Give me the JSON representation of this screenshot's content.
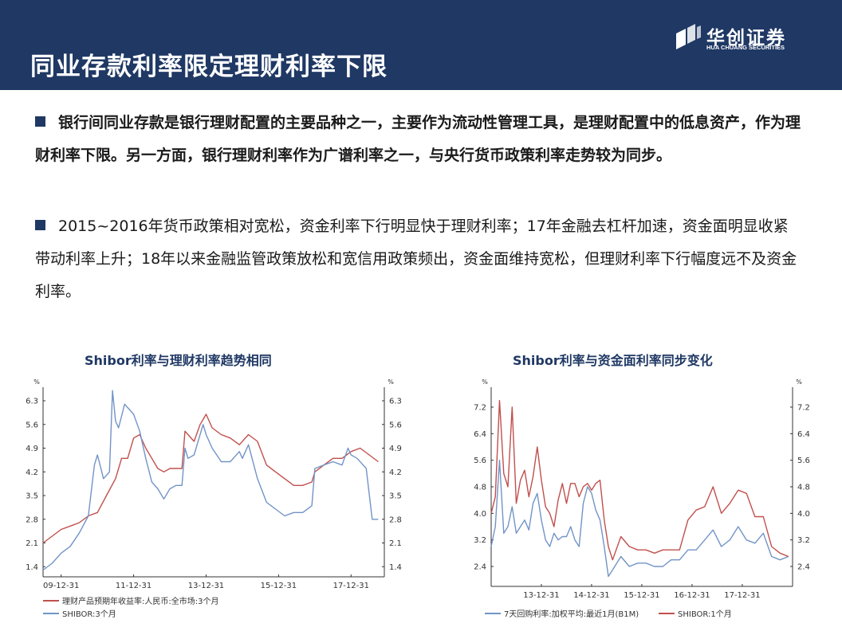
{
  "slide": {
    "title": "同业存款利率限定理财利率下限",
    "logo_cn": "华创证券",
    "logo_en": "HUA CHUANG SECURITIES",
    "paragraph1": "银行间同业存款是银行理财配置的主要品种之一，主要作为流动性管理工具，是理财配置中的低息资产，作为理财利率下限。另一方面，银行理财利率作为广谱利率之一，与央行货币政策利率走势较为同步。",
    "paragraph2": "2015~2016年货币政策相对宽松，资金利率下行明显快于理财利率；17年金融去杠杆加速，资金面明显收紧带动利率上升；18年以来金融监管政策放松和宽信用政策频出，资金面维持宽松，但理财利率下行幅度远不及资金利率。"
  },
  "colors": {
    "header": "#1f3864",
    "red": "#c0504d",
    "blue": "#7294c7"
  },
  "chart_data": [
    {
      "type": "line",
      "title": "Shibor利率与理财利率趋势相同",
      "unit": "%",
      "x_ticks": [
        "09-12-31",
        "11-12-31",
        "13-12-31",
        "15-12-31",
        "17-12-31"
      ],
      "x_range": [
        "2009-07",
        "2018-12"
      ],
      "y_ticks": [
        "1.4",
        "2.1",
        "2.8",
        "3.5",
        "4.2",
        "4.9",
        "5.6",
        "6.3"
      ],
      "ylim": [
        1.1,
        6.7
      ],
      "legend_position": "bottom",
      "series": [
        {
          "name": "理财产品预期年收益率:人民币:全市场:3个月",
          "color": "#c0504d",
          "x": [
            "2009-07",
            "2009-10",
            "2010-01",
            "2010-04",
            "2010-07",
            "2010-10",
            "2011-01",
            "2011-04",
            "2011-07",
            "2011-09",
            "2011-11",
            "2012-01",
            "2012-03",
            "2012-05",
            "2012-07",
            "2012-09",
            "2012-11",
            "2013-01",
            "2013-03",
            "2013-05",
            "2013-06",
            "2013-07",
            "2013-09",
            "2013-11",
            "2014-01",
            "2014-03",
            "2014-06",
            "2014-09",
            "2014-12",
            "2015-03",
            "2015-06",
            "2015-09",
            "2015-12",
            "2016-03",
            "2016-06",
            "2016-09",
            "2016-12",
            "2017-01",
            "2017-04",
            "2017-07",
            "2017-10",
            "2018-01",
            "2018-04",
            "2018-07",
            "2018-10"
          ],
          "y": [
            2.1,
            2.3,
            2.5,
            2.6,
            2.7,
            2.9,
            3.0,
            3.5,
            4.0,
            4.6,
            4.6,
            5.2,
            5.3,
            4.9,
            4.6,
            4.3,
            4.2,
            4.3,
            4.3,
            4.3,
            5.4,
            5.3,
            5.1,
            5.6,
            5.9,
            5.5,
            5.3,
            5.2,
            5.0,
            5.3,
            5.1,
            4.4,
            4.2,
            4.0,
            3.8,
            3.8,
            3.9,
            4.2,
            4.4,
            4.6,
            4.6,
            4.8,
            4.9,
            4.7,
            4.5
          ]
        },
        {
          "name": "SHIBOR:3个月",
          "color": "#7294c7",
          "x": [
            "2009-07",
            "2009-10",
            "2010-01",
            "2010-04",
            "2010-07",
            "2010-10",
            "2010-12",
            "2011-01",
            "2011-03",
            "2011-05",
            "2011-06",
            "2011-07",
            "2011-08",
            "2011-10",
            "2012-01",
            "2012-03",
            "2012-05",
            "2012-07",
            "2012-09",
            "2012-11",
            "2013-01",
            "2013-03",
            "2013-05",
            "2013-06",
            "2013-07",
            "2013-09",
            "2013-12",
            "2014-01",
            "2014-03",
            "2014-06",
            "2014-09",
            "2014-12",
            "2015-01",
            "2015-03",
            "2015-06",
            "2015-09",
            "2015-12",
            "2016-03",
            "2016-06",
            "2016-09",
            "2016-12",
            "2017-01",
            "2017-04",
            "2017-07",
            "2017-10",
            "2017-12",
            "2018-01",
            "2018-03",
            "2018-06",
            "2018-08",
            "2018-10"
          ],
          "y": [
            1.3,
            1.5,
            1.8,
            2.0,
            2.4,
            2.9,
            4.4,
            4.7,
            4.0,
            4.2,
            6.6,
            5.7,
            5.5,
            6.2,
            5.9,
            5.4,
            4.6,
            3.9,
            3.7,
            3.4,
            3.7,
            3.8,
            3.8,
            4.9,
            4.6,
            4.7,
            5.6,
            5.3,
            4.9,
            4.5,
            4.5,
            4.8,
            4.6,
            5.0,
            4.0,
            3.3,
            3.1,
            2.9,
            3.0,
            3.0,
            3.2,
            4.3,
            4.4,
            4.5,
            4.4,
            4.9,
            4.7,
            4.6,
            4.3,
            2.8,
            2.8
          ]
        }
      ]
    },
    {
      "type": "line",
      "title": "Shibor利率与资金面利率同步变化",
      "unit": "%",
      "x_ticks": [
        "13-12-31",
        "14-12-31",
        "15-12-31",
        "16-12-31",
        "17-12-31"
      ],
      "x_range": [
        "2013-01",
        "2019-01"
      ],
      "y_ticks": [
        "2.4",
        "3.2",
        "4.0",
        "4.8",
        "5.6",
        "6.4",
        "7.2"
      ],
      "ylim": [
        1.8,
        7.8
      ],
      "legend_position": "bottom",
      "series": [
        {
          "name": "7天回购利率:加权平均:最近1月(B1M)",
          "color": "#7294c7",
          "x": [
            "2013-01",
            "2013-02",
            "2013-03",
            "2013-04",
            "2013-05",
            "2013-06",
            "2013-07",
            "2013-08",
            "2013-09",
            "2013-10",
            "2013-11",
            "2013-12",
            "2014-01",
            "2014-02",
            "2014-03",
            "2014-04",
            "2014-05",
            "2014-06",
            "2014-07",
            "2014-08",
            "2014-09",
            "2014-10",
            "2014-11",
            "2014-12",
            "2015-01",
            "2015-02",
            "2015-03",
            "2015-04",
            "2015-05",
            "2015-06",
            "2015-08",
            "2015-10",
            "2015-12",
            "2016-02",
            "2016-04",
            "2016-06",
            "2016-08",
            "2016-10",
            "2016-12",
            "2017-02",
            "2017-04",
            "2017-06",
            "2017-08",
            "2017-10",
            "2017-12",
            "2018-02",
            "2018-04",
            "2018-06",
            "2018-08",
            "2018-10",
            "2018-12"
          ],
          "y": [
            3.0,
            3.6,
            5.6,
            3.4,
            3.6,
            4.2,
            3.4,
            3.6,
            3.8,
            3.5,
            4.3,
            4.6,
            3.8,
            3.2,
            3.0,
            3.4,
            3.2,
            3.3,
            3.3,
            3.6,
            3.2,
            3.0,
            4.3,
            4.8,
            4.6,
            4.1,
            3.8,
            3.0,
            2.1,
            2.3,
            2.7,
            2.4,
            2.5,
            2.5,
            2.4,
            2.4,
            2.6,
            2.6,
            2.9,
            2.9,
            3.2,
            3.5,
            3.0,
            3.2,
            3.6,
            3.2,
            3.1,
            3.4,
            2.7,
            2.6,
            2.7
          ]
        },
        {
          "name": "SHIBOR:1个月",
          "color": "#c0504d",
          "x": [
            "2013-01",
            "2013-02",
            "2013-03",
            "2013-04",
            "2013-05",
            "2013-06",
            "2013-07",
            "2013-08",
            "2013-09",
            "2013-10",
            "2013-11",
            "2013-12",
            "2014-01",
            "2014-02",
            "2014-03",
            "2014-04",
            "2014-05",
            "2014-06",
            "2014-07",
            "2014-08",
            "2014-09",
            "2014-10",
            "2014-11",
            "2014-12",
            "2015-01",
            "2015-02",
            "2015-03",
            "2015-04",
            "2015-05",
            "2015-06",
            "2015-08",
            "2015-10",
            "2015-12",
            "2016-02",
            "2016-04",
            "2016-06",
            "2016-08",
            "2016-10",
            "2016-12",
            "2017-02",
            "2017-04",
            "2017-06",
            "2017-08",
            "2017-10",
            "2017-12",
            "2018-02",
            "2018-04",
            "2018-06",
            "2018-08",
            "2018-10",
            "2018-12"
          ],
          "y": [
            4.0,
            4.5,
            7.4,
            5.2,
            4.8,
            7.2,
            4.3,
            5.0,
            5.3,
            4.5,
            5.1,
            6.0,
            5.0,
            4.2,
            4.0,
            3.6,
            4.4,
            4.9,
            4.3,
            4.9,
            4.9,
            4.5,
            4.8,
            4.9,
            4.7,
            4.9,
            5.0,
            3.8,
            3.0,
            2.6,
            3.3,
            3.0,
            2.9,
            2.9,
            2.8,
            2.9,
            2.9,
            2.9,
            3.8,
            4.1,
            4.2,
            4.8,
            4.0,
            4.3,
            4.7,
            4.6,
            3.9,
            3.9,
            3.0,
            2.8,
            2.7
          ]
        }
      ]
    }
  ]
}
